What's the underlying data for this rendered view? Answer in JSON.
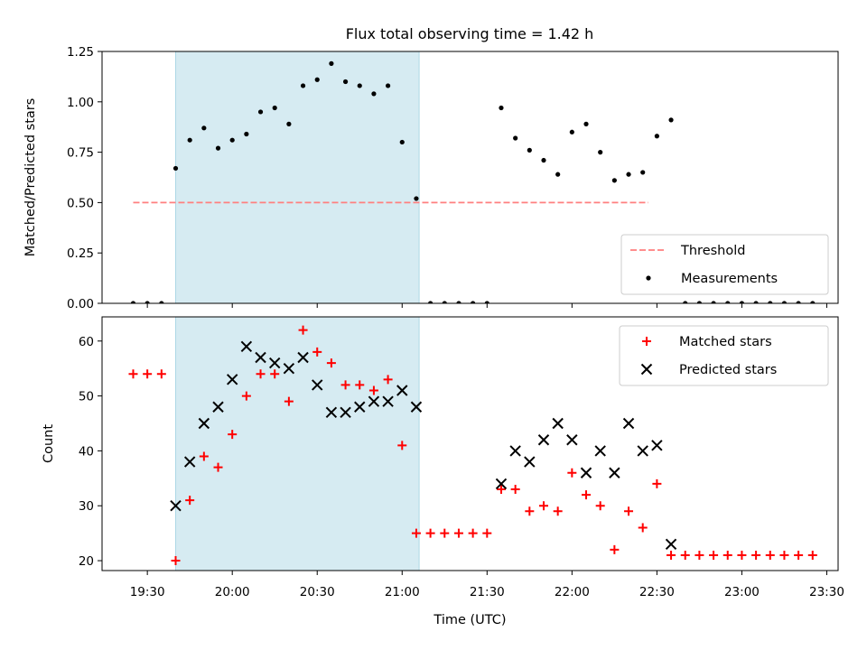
{
  "title": "Flux total observing time = 1.42 h",
  "colors": {
    "shade": "#add8e6",
    "threshold": "#ff7f7f",
    "measurement": "#000000",
    "matched": "#ff0000",
    "predicted": "#000000"
  },
  "chart_data": [
    {
      "type": "scatter",
      "ylabel": "Matched/Predicted stars",
      "xlim": [
        "19:14",
        "23:34"
      ],
      "ylim": [
        0,
        1.25
      ],
      "yticks": [
        "0.00",
        "0.25",
        "0.50",
        "0.75",
        "1.00",
        "1.25"
      ],
      "shaded_region": [
        "19:40",
        "21:06"
      ],
      "legend": {
        "placement": "lower right",
        "entries": [
          "Threshold",
          "Measurements"
        ]
      },
      "threshold": {
        "name": "Threshold",
        "y": 0.5,
        "x_range": [
          "19:25",
          "22:27"
        ]
      },
      "series": [
        {
          "name": "Measurements",
          "points": [
            [
              "19:25",
              0
            ],
            [
              "19:30",
              0
            ],
            [
              "19:35",
              0
            ],
            [
              "19:40",
              0.67
            ],
            [
              "19:45",
              0.81
            ],
            [
              "19:50",
              0.87
            ],
            [
              "19:55",
              0.77
            ],
            [
              "20:00",
              0.81
            ],
            [
              "20:05",
              0.84
            ],
            [
              "20:10",
              0.95
            ],
            [
              "20:15",
              0.97
            ],
            [
              "20:20",
              0.89
            ],
            [
              "20:25",
              1.08
            ],
            [
              "20:30",
              1.11
            ],
            [
              "20:35",
              1.19
            ],
            [
              "20:40",
              1.1
            ],
            [
              "20:45",
              1.08
            ],
            [
              "20:50",
              1.04
            ],
            [
              "20:55",
              1.08
            ],
            [
              "21:00",
              0.8
            ],
            [
              "21:05",
              0.52
            ],
            [
              "21:10",
              0
            ],
            [
              "21:15",
              0
            ],
            [
              "21:20",
              0
            ],
            [
              "21:25",
              0
            ],
            [
              "21:30",
              0
            ],
            [
              "21:35",
              0.97
            ],
            [
              "21:40",
              0.82
            ],
            [
              "21:45",
              0.76
            ],
            [
              "21:50",
              0.71
            ],
            [
              "21:55",
              0.64
            ],
            [
              "22:00",
              0.85
            ],
            [
              "22:05",
              0.89
            ],
            [
              "22:10",
              0.75
            ],
            [
              "22:15",
              0.61
            ],
            [
              "22:20",
              0.64
            ],
            [
              "22:25",
              0.65
            ],
            [
              "22:30",
              0.83
            ],
            [
              "22:35",
              0.91
            ],
            [
              "22:40",
              0
            ],
            [
              "22:45",
              0
            ],
            [
              "22:50",
              0
            ],
            [
              "22:55",
              0
            ],
            [
              "23:00",
              0
            ],
            [
              "23:05",
              0
            ],
            [
              "23:10",
              0
            ],
            [
              "23:15",
              0
            ],
            [
              "23:20",
              0
            ],
            [
              "23:25",
              0
            ]
          ]
        }
      ]
    },
    {
      "type": "scatter",
      "xlabel": "Time (UTC)",
      "ylabel": "Count",
      "xlim": [
        "19:14",
        "23:34"
      ],
      "xticks": [
        "19:30",
        "20:00",
        "20:30",
        "21:00",
        "21:30",
        "22:00",
        "22:30",
        "23:00",
        "23:30"
      ],
      "ylim": [
        18.2,
        64.4
      ],
      "yticks": [
        20,
        30,
        40,
        50,
        60
      ],
      "shaded_region": [
        "19:40",
        "21:06"
      ],
      "legend": {
        "placement": "upper right",
        "entries": [
          "Matched stars",
          "Predicted stars"
        ]
      },
      "series": [
        {
          "name": "Matched stars",
          "marker": "+",
          "points": [
            [
              "19:25",
              54
            ],
            [
              "19:30",
              54
            ],
            [
              "19:35",
              54
            ],
            [
              "19:40",
              20
            ],
            [
              "19:45",
              31
            ],
            [
              "19:50",
              39
            ],
            [
              "19:55",
              37
            ],
            [
              "20:00",
              43
            ],
            [
              "20:05",
              50
            ],
            [
              "20:10",
              54
            ],
            [
              "20:15",
              54
            ],
            [
              "20:20",
              49
            ],
            [
              "20:25",
              62
            ],
            [
              "20:30",
              58
            ],
            [
              "20:35",
              56
            ],
            [
              "20:40",
              52
            ],
            [
              "20:45",
              52
            ],
            [
              "20:50",
              51
            ],
            [
              "20:55",
              53
            ],
            [
              "21:00",
              41
            ],
            [
              "21:05",
              25
            ],
            [
              "21:10",
              25
            ],
            [
              "21:15",
              25
            ],
            [
              "21:20",
              25
            ],
            [
              "21:25",
              25
            ],
            [
              "21:30",
              25
            ],
            [
              "21:35",
              33
            ],
            [
              "21:40",
              33
            ],
            [
              "21:45",
              29
            ],
            [
              "21:50",
              30
            ],
            [
              "21:55",
              29
            ],
            [
              "22:00",
              36
            ],
            [
              "22:05",
              32
            ],
            [
              "22:10",
              30
            ],
            [
              "22:15",
              22
            ],
            [
              "22:20",
              29
            ],
            [
              "22:25",
              26
            ],
            [
              "22:30",
              34
            ],
            [
              "22:35",
              21
            ],
            [
              "22:40",
              21
            ],
            [
              "22:45",
              21
            ],
            [
              "22:50",
              21
            ],
            [
              "22:55",
              21
            ],
            [
              "23:00",
              21
            ],
            [
              "23:05",
              21
            ],
            [
              "23:10",
              21
            ],
            [
              "23:15",
              21
            ],
            [
              "23:20",
              21
            ],
            [
              "23:25",
              21
            ]
          ]
        },
        {
          "name": "Predicted stars",
          "marker": "x",
          "points": [
            [
              "19:40",
              30
            ],
            [
              "19:45",
              38
            ],
            [
              "19:50",
              45
            ],
            [
              "19:55",
              48
            ],
            [
              "20:00",
              53
            ],
            [
              "20:05",
              59
            ],
            [
              "20:10",
              57
            ],
            [
              "20:15",
              56
            ],
            [
              "20:20",
              55
            ],
            [
              "20:25",
              57
            ],
            [
              "20:30",
              52
            ],
            [
              "20:35",
              47
            ],
            [
              "20:40",
              47
            ],
            [
              "20:45",
              48
            ],
            [
              "20:50",
              49
            ],
            [
              "20:55",
              49
            ],
            [
              "21:00",
              51
            ],
            [
              "21:05",
              48
            ],
            [
              "21:35",
              34
            ],
            [
              "21:40",
              40
            ],
            [
              "21:45",
              38
            ],
            [
              "21:50",
              42
            ],
            [
              "21:55",
              45
            ],
            [
              "22:00",
              42
            ],
            [
              "22:05",
              36
            ],
            [
              "22:10",
              40
            ],
            [
              "22:15",
              36
            ],
            [
              "22:20",
              45
            ],
            [
              "22:25",
              40
            ],
            [
              "22:30",
              41
            ],
            [
              "22:35",
              23
            ]
          ]
        }
      ]
    }
  ]
}
